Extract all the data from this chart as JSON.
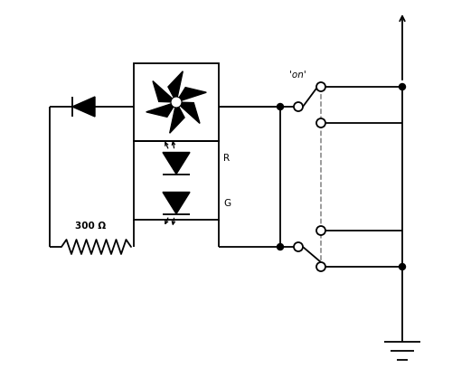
{
  "bg_color": "#ffffff",
  "line_color": "#000000",
  "label_300R": "300 Ω",
  "label_on": "'on'",
  "label_R": "R",
  "label_G": "G",
  "fig_width": 5.0,
  "fig_height": 4.28,
  "dpi": 100
}
